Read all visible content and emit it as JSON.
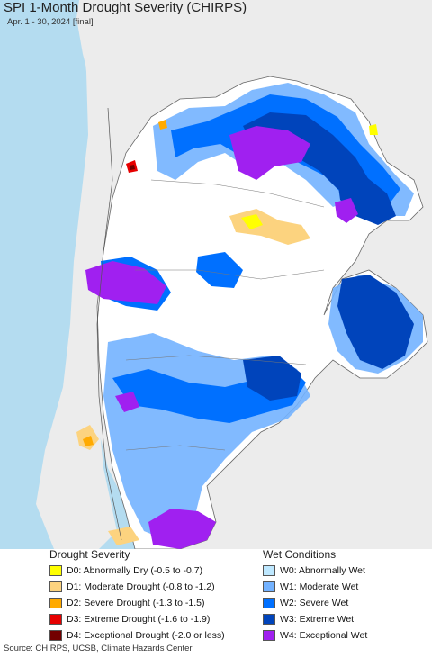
{
  "header": {
    "title": "SPI 1-Month Drought Severity (CHIRPS)",
    "subtitle": "Apr. 1 - 30, 2024 [final]"
  },
  "legend": {
    "drought": {
      "title": "Drought Severity",
      "items": [
        {
          "label": "D0: Abnormally Dry (-0.5 to -0.7)",
          "color": "#ffff00"
        },
        {
          "label": "D1: Moderate Drought (-0.8 to -1.2)",
          "color": "#fcd37f"
        },
        {
          "label": "D2: Severe Drought (-1.3 to -1.5)",
          "color": "#ffaa00"
        },
        {
          "label": "D3: Extreme Drought (-1.6 to -1.9)",
          "color": "#e60000"
        },
        {
          "label": "D4: Exceptional Drought (-2.0 or less)",
          "color": "#730000"
        }
      ]
    },
    "wet": {
      "title": "Wet Conditions",
      "items": [
        {
          "label": "W0: Abnormally Wet",
          "color": "#bee8ff"
        },
        {
          "label": "W1: Moderate Wet",
          "color": "#73b2ff"
        },
        {
          "label": "W2: Severe Wet",
          "color": "#0070ff"
        },
        {
          "label": "W3: Extreme Wet",
          "color": "#0044bb"
        },
        {
          "label": "W4: Exceptional Wet",
          "color": "#a020f0"
        }
      ]
    }
  },
  "colors": {
    "ocean": "#b4dcf0",
    "land_outside": "#ececec",
    "normal": "#ffffff",
    "border": "#666666"
  },
  "footer": {
    "source": "Source: CHIRPS, UCSB, Climate Hazards Center"
  }
}
